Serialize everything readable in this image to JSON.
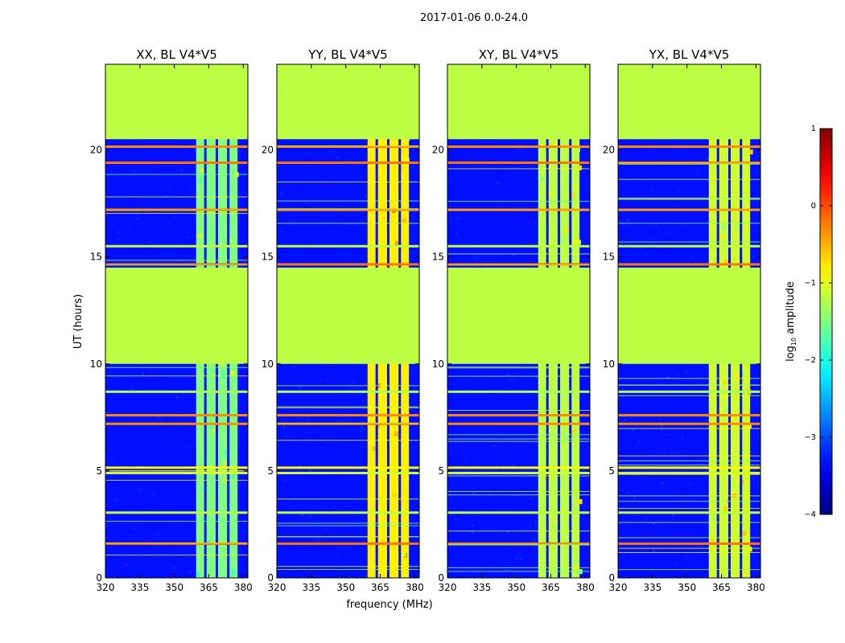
{
  "suptitle": "2017-01-06 0.0-24.0",
  "chart_data": {
    "type": "heatmap",
    "panels": [
      {
        "title": "XX, BL V4*V5",
        "band_level": -1.5
      },
      {
        "title": "YY, BL V4*V5",
        "band_level": -0.8
      },
      {
        "title": "XY, BL V4*V5",
        "band_level": -1.2
      },
      {
        "title": "YX, BL V4*V5",
        "band_level": -1.1
      }
    ],
    "xlabel": "frequency (MHz)",
    "ylabel": "UT (hours)",
    "xlim": [
      320,
      382
    ],
    "ylim": [
      0,
      24
    ],
    "xticks": [
      320,
      335,
      350,
      365,
      380
    ],
    "xtick_labels": [
      "320",
      "335",
      "350",
      "365",
      "380"
    ],
    "yticks": [
      0,
      5,
      10,
      15,
      20
    ],
    "ytick_labels": [
      "0",
      "5",
      "10",
      "15",
      "20"
    ],
    "flagged_value": -1.2,
    "flagged_ranges": [
      [
        10.0,
        14.5
      ],
      [
        20.5,
        24.0
      ]
    ],
    "background_level": -3.3,
    "band_range_mhz": [
      359.5,
      377.5
    ],
    "band_notches_mhz": [
      363.5,
      368.5,
      373.5
    ],
    "rfi_lines": [
      {
        "ut": 1.6,
        "level": -0.2
      },
      {
        "ut": 3.05,
        "level": -1.2
      },
      {
        "ut": 4.9,
        "level": -1.1
      },
      {
        "ut": 5.15,
        "level": -0.9
      },
      {
        "ut": 7.2,
        "level": -0.3
      },
      {
        "ut": 7.6,
        "level": -0.3
      },
      {
        "ut": 8.7,
        "level": -1.3
      },
      {
        "ut": 14.65,
        "level": -0.2
      },
      {
        "ut": 15.5,
        "level": -1.2
      },
      {
        "ut": 17.2,
        "level": -0.4
      },
      {
        "ut": 19.4,
        "level": -0.2
      },
      {
        "ut": 20.15,
        "level": -0.3
      }
    ],
    "colorbar": {
      "label": "log",
      "label_sub": "10",
      "label_rest": " amplitude",
      "min": -4,
      "max": 1,
      "ticks": [
        1,
        0,
        -1,
        -2,
        -3,
        -4
      ],
      "tick_labels": [
        "1",
        "0",
        "−1",
        "−2",
        "−3",
        "−4"
      ],
      "colormap": "jet"
    }
  }
}
